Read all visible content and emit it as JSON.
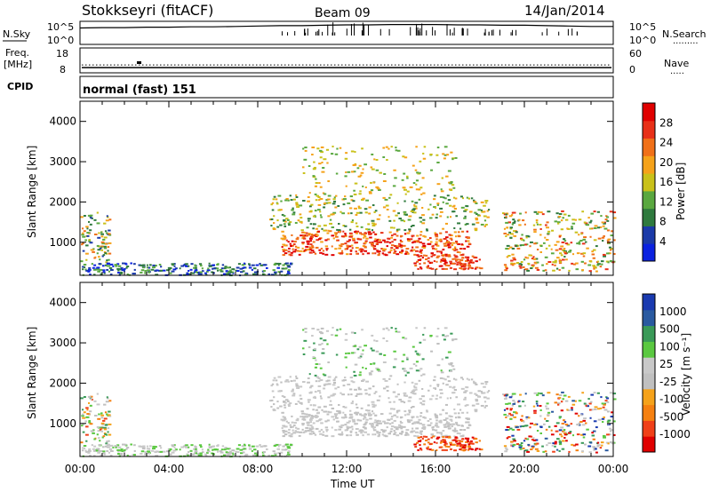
{
  "header": {
    "station": "Stokkseyri (fitACF)",
    "beam": "Beam 09",
    "date": "14/Jan/2014"
  },
  "strip_labels": {
    "nsky": "N.Sky",
    "nsearch": "N.Search",
    "nsearch_line": "·········",
    "nsky_ticks": [
      "10^5",
      "10^0"
    ],
    "nsearch_ticks": [
      "10^5",
      "10^0"
    ],
    "freq": "Freq.",
    "freq_unit": "[MHz]",
    "freq_ticks": [
      "18",
      "8"
    ],
    "nave": "Nave",
    "nave_line": "·····",
    "nave_ticks": [
      "60",
      "0"
    ],
    "cpid": "CPID",
    "cpid_text": "normal (fast) 151"
  },
  "colors": {
    "power_scale": [
      "#0b22e0",
      "#1b3aa8",
      "#2f7a3e",
      "#5aa840",
      "#c9c11a",
      "#f5a21a",
      "#f07018",
      "#e83018",
      "#e00000"
    ],
    "velocity_scale": [
      "#e00000",
      "#f04018",
      "#f58010",
      "#f5a21a",
      "#c0c0c0",
      "#c8c8c8",
      "#5ac840",
      "#3a9a58",
      "#2a5aa0",
      "#1a3ab0"
    ]
  },
  "chart_data": [
    {
      "type": "line",
      "panel": "sky-noise",
      "series": [
        {
          "name": "N.Sky",
          "values": [
            4.2,
            4.3,
            4.3,
            4.4,
            4.4,
            4.5,
            4.5,
            4.6,
            4.7,
            4.8,
            4.8,
            4.9,
            5.0,
            5.0,
            5.1,
            5.1,
            5.1,
            5.0,
            5.0,
            4.9,
            4.9,
            4.8,
            4.7,
            4.6,
            4.6
          ]
        },
        {
          "name": "N.Search",
          "values": [
            4.0,
            4.1,
            4.1,
            4.2,
            4.2,
            4.3,
            4.3,
            4.4,
            4.5,
            4.6,
            4.6,
            4.7,
            4.8,
            4.8,
            4.9,
            4.9,
            4.9,
            4.8,
            4.8,
            4.7,
            4.7,
            4.6,
            4.5,
            4.4,
            4.4
          ]
        }
      ],
      "x": [
        0,
        1,
        2,
        3,
        4,
        5,
        6,
        7,
        8,
        9,
        10,
        11,
        12,
        13,
        14,
        15,
        16,
        17,
        18,
        19,
        20,
        21,
        22,
        23,
        24
      ],
      "ylim": [
        0,
        5
      ]
    },
    {
      "type": "line",
      "panel": "frequency-nave",
      "series": [
        {
          "name": "Freq.",
          "values": [
            10.1,
            10.1,
            10.1,
            10.1,
            10.1,
            10.1,
            10.1,
            10.1,
            10.1,
            10.1,
            10.1,
            10.1,
            10.1,
            10.1,
            10.1,
            10.1,
            10.1,
            10.1,
            10.1,
            10.1,
            10.1,
            10.1,
            10.1,
            10.1,
            10.1
          ]
        },
        {
          "name": "Nave",
          "values": [
            19,
            19,
            19,
            19,
            19,
            19,
            19,
            19,
            19,
            19,
            19,
            19,
            19,
            19,
            19,
            19,
            19,
            19,
            19,
            19,
            19,
            19,
            19,
            19,
            19
          ]
        }
      ],
      "x": [
        0,
        1,
        2,
        3,
        4,
        5,
        6,
        7,
        8,
        9,
        10,
        11,
        12,
        13,
        14,
        15,
        16,
        17,
        18,
        19,
        20,
        21,
        22,
        23,
        24
      ],
      "ylim": [
        8,
        18
      ]
    },
    {
      "type": "heatmap",
      "panel": "power",
      "xlabel": "",
      "ylabel": "Slant Range [km]",
      "xlim": [
        0,
        24
      ],
      "ylim": [
        180,
        4500
      ],
      "x_ticks": [
        "00:00",
        "04:00",
        "08:00",
        "12:00",
        "16:00",
        "20:00",
        "00:00"
      ],
      "y_ticks": [
        "1000",
        "2000",
        "3000",
        "4000"
      ],
      "colorbar_label": "Power [dB]",
      "colorbar_ticks": [
        "4",
        "8",
        "12",
        "16",
        "20",
        "24",
        "28"
      ]
    },
    {
      "type": "heatmap",
      "panel": "velocity",
      "xlabel": "Time UT",
      "ylabel": "Slant Range [km]",
      "xlim": [
        0,
        24
      ],
      "ylim": [
        180,
        4500
      ],
      "x_ticks": [
        "00:00",
        "04:00",
        "08:00",
        "12:00",
        "16:00",
        "20:00",
        "00:00"
      ],
      "y_ticks": [
        "1000",
        "2000",
        "3000",
        "4000"
      ],
      "colorbar_label": "Velocity [m s⁻¹]",
      "colorbar_ticks": [
        "1000",
        "500",
        "100",
        "25",
        "-25",
        "-100",
        "-500",
        "-1000"
      ]
    }
  ]
}
